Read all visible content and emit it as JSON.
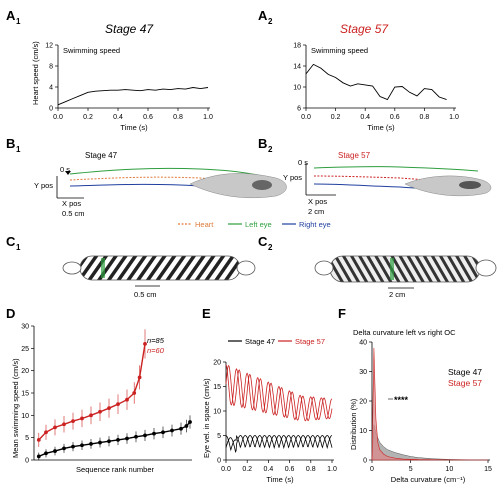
{
  "panels": {
    "A1": {
      "letter": "A",
      "sub": "1",
      "stage_title": "Stage 47",
      "inset_label": "Swimming speed",
      "xlabel": "Time (s)",
      "ylabel": "Heart speed (cm/s)"
    },
    "A2": {
      "letter": "A",
      "sub": "2",
      "stage_title": "Stage 57",
      "inset_label": "Swimming speed",
      "xlabel": "Time (s)"
    },
    "B1": {
      "letter": "B",
      "sub": "1",
      "title": "Stage 47",
      "time_label": "0 s",
      "ylabel": "Y pos",
      "xlabel": "X pos",
      "scale_label": "0.5 cm"
    },
    "B2": {
      "letter": "B",
      "sub": "2",
      "title": "Stage 57",
      "time_label": "0 s",
      "ylabel": "Y pos",
      "xlabel": "X pos",
      "scale_label": "2 cm"
    },
    "C1": {
      "letter": "C",
      "sub": "1",
      "scale_label": "0.5 cm"
    },
    "C2": {
      "letter": "C",
      "sub": "2",
      "scale_label": "2 cm"
    },
    "D": {
      "letter": "D",
      "ylabel": "Mean swimming speed (cm/s)",
      "xlabel": "Sequence rank number",
      "n1": "n=85",
      "n2": "n=60"
    },
    "E": {
      "letter": "E",
      "legend1": "Stage 47",
      "legend2": "Stage 57",
      "ylabel": "Eye vel. in space (cm/s)",
      "xlabel": "Time (s)"
    },
    "F": {
      "letter": "F",
      "title": "Delta curvature left vs right OC",
      "legend1": "Stage 47",
      "legend2": "Stage 57",
      "ylabel": "Distribution (%)",
      "xlabel": "Delta curvature (cm⁻¹)",
      "stars": "****"
    }
  },
  "legend_B": {
    "heart": "Heart",
    "left_eye": "Left eye",
    "right_eye": "Right eye"
  },
  "colors": {
    "stage47": "#000000",
    "stage57": "#cc2222",
    "heart": "#e07a3a",
    "left_eye": "#2e9e3e",
    "right_eye": "#1f3f9e"
  },
  "chart_data": [
    {
      "id": "A1",
      "type": "line",
      "xlim": [
        0,
        1
      ],
      "ylim": [
        0,
        12
      ],
      "xticks": [
        "0.0",
        "0.2",
        "0.4",
        "0.6",
        "0.8",
        "1.0"
      ],
      "yticks": [
        "0",
        "4",
        "8",
        "12"
      ],
      "series": [
        {
          "x": [
            0,
            0.05,
            0.1,
            0.15,
            0.2,
            0.25,
            0.3,
            0.35,
            0.4,
            0.45,
            0.5,
            0.55,
            0.6,
            0.65,
            0.7,
            0.75,
            0.8,
            0.85,
            0.9,
            0.95,
            1.0
          ],
          "y": [
            0.6,
            1.2,
            1.8,
            2.4,
            3.0,
            3.2,
            3.3,
            3.4,
            3.4,
            3.5,
            3.4,
            3.3,
            3.5,
            3.4,
            3.6,
            3.5,
            3.7,
            3.6,
            3.9,
            3.7,
            3.9
          ]
        }
      ]
    },
    {
      "id": "A2",
      "type": "line",
      "xlim": [
        0,
        1
      ],
      "ylim": [
        6,
        18
      ],
      "xticks": [
        "0.0",
        "0.2",
        "0.4",
        "0.6",
        "0.8",
        "1.0"
      ],
      "yticks": [
        "6",
        "10",
        "14",
        "18"
      ],
      "series": [
        {
          "x": [
            0,
            0.05,
            0.1,
            0.15,
            0.2,
            0.25,
            0.3,
            0.35,
            0.4,
            0.45,
            0.5,
            0.55,
            0.6,
            0.65,
            0.7,
            0.75,
            0.8,
            0.85,
            0.9,
            0.95
          ],
          "y": [
            12.5,
            14.3,
            13.6,
            12.4,
            11.8,
            10.8,
            10.2,
            10.6,
            10.4,
            10.2,
            8.2,
            7.6,
            10.0,
            10.1,
            9.0,
            8.3,
            9.7,
            9.5,
            8.1,
            7.6
          ]
        }
      ]
    },
    {
      "id": "D",
      "type": "scatter",
      "xlim": [
        0,
        85
      ],
      "ylim": [
        0,
        30
      ],
      "yticks": [
        "0",
        "5",
        "10",
        "15",
        "20",
        "25",
        "30"
      ],
      "series": [
        {
          "name": "n=85",
          "x": [
            1,
            5,
            10,
            15,
            20,
            25,
            30,
            35,
            40,
            45,
            50,
            55,
            60,
            65,
            70,
            75,
            80,
            83,
            85
          ],
          "y": [
            0.8,
            1.5,
            2.0,
            2.6,
            3.0,
            3.3,
            3.6,
            3.9,
            4.2,
            4.5,
            4.8,
            5.2,
            5.5,
            5.9,
            6.2,
            6.6,
            7.0,
            7.6,
            8.5
          ]
        },
        {
          "name": "n=60",
          "x": [
            1,
            5,
            10,
            15,
            20,
            25,
            30,
            35,
            40,
            45,
            50,
            54,
            57,
            60
          ],
          "y": [
            4.5,
            6.2,
            7.3,
            8.0,
            8.7,
            9.3,
            10.0,
            10.8,
            11.6,
            12.5,
            13.5,
            15.0,
            18.5,
            26.0
          ]
        }
      ]
    },
    {
      "id": "E",
      "type": "line",
      "xlim": [
        0,
        1
      ],
      "ylim": [
        0,
        20
      ],
      "xticks": [
        "0.0",
        "0.2",
        "0.4",
        "0.6",
        "0.8",
        "1.0"
      ],
      "yticks": [
        "0",
        "5",
        "10",
        "15",
        "20"
      ],
      "series": [
        {
          "name": "Stage 47",
          "note": "oscillating eye traces around 3 cm/s (amplitude ~2.5, ~12 Hz)",
          "mean": 3,
          "amplitude": 2.5
        },
        {
          "name": "Stage 57",
          "note": "oscillating eye traces decaying from ~15 to ~10 cm/s",
          "start": 15.5,
          "end": 10.5,
          "amplitude": 4
        }
      ]
    },
    {
      "id": "F",
      "type": "area",
      "xlim": [
        0,
        15
      ],
      "ylim": [
        0,
        40
      ],
      "xticks": [
        "0",
        "5",
        "10",
        "15"
      ],
      "yticks": [
        "0",
        "10",
        "20",
        "30",
        "40"
      ],
      "series": [
        {
          "name": "Stage 47",
          "x": [
            0,
            0.25,
            0.5,
            1,
            1.5,
            2,
            3,
            4,
            5,
            6,
            8,
            10,
            12,
            15
          ],
          "y": [
            0,
            12,
            9,
            6,
            4.5,
            3.5,
            2.5,
            1.8,
            1.2,
            0.8,
            0.4,
            0.2,
            0.1,
            0.05
          ]
        },
        {
          "name": "Stage 57",
          "x": [
            0,
            0.25,
            0.5,
            0.75,
            1,
            1.5,
            2,
            3,
            4,
            6,
            10,
            15
          ],
          "y": [
            0,
            38,
            14,
            6,
            3.5,
            2,
            1.2,
            0.6,
            0.3,
            0.15,
            0.05,
            0
          ]
        }
      ]
    }
  ]
}
